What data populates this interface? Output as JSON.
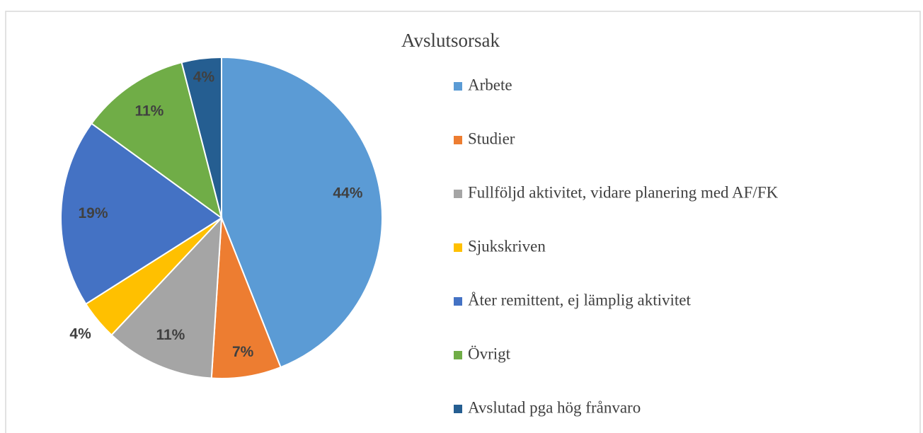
{
  "chart_data": {
    "type": "pie",
    "title": "Avslutsorsak",
    "categories": [
      "Arbete",
      "Studier",
      "Fullföljd aktivitet, vidare planering med AF/FK",
      "Sjukskriven",
      "Åter remittent, ej lämplig aktivitet",
      "Övrigt",
      "Avslutad pga hög frånvaro"
    ],
    "values": [
      44,
      7,
      11,
      4,
      19,
      11,
      4
    ],
    "value_labels": [
      "44%",
      "7%",
      "11%",
      "4%",
      "19%",
      "11%",
      "4%"
    ],
    "colors": [
      "#5b9bd5",
      "#ed7d31",
      "#a5a5a5",
      "#ffc000",
      "#4472c4",
      "#70ad47",
      "#255e91"
    ],
    "legend": "right"
  }
}
